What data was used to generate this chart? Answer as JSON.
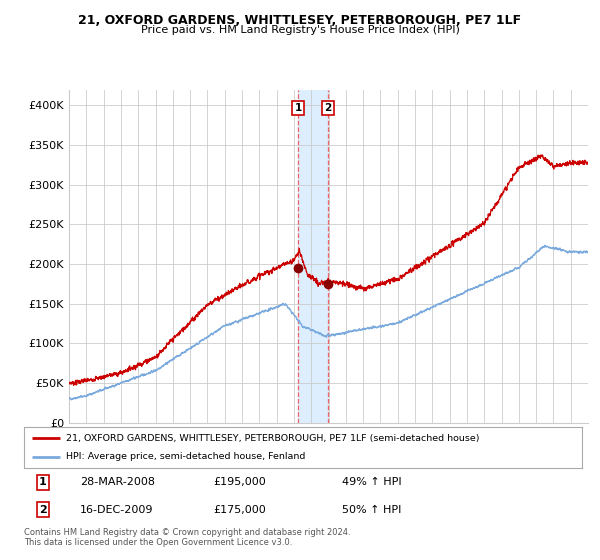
{
  "title_line1": "21, OXFORD GARDENS, WHITTLESEY, PETERBOROUGH, PE7 1LF",
  "title_line2": "Price paid vs. HM Land Registry's House Price Index (HPI)",
  "ylim": [
    0,
    420000
  ],
  "yticks": [
    0,
    50000,
    100000,
    150000,
    200000,
    250000,
    300000,
    350000,
    400000
  ],
  "ytick_labels": [
    "£0",
    "£50K",
    "£100K",
    "£150K",
    "£200K",
    "£250K",
    "£300K",
    "£350K",
    "£400K"
  ],
  "sale1_date_num": 2008.24,
  "sale1_price": 195000,
  "sale2_date_num": 2009.96,
  "sale2_price": 175000,
  "sale1_label": "1",
  "sale2_label": "2",
  "hpi_color": "#7aaadd",
  "price_color": "#cc0000",
  "sale_dot_color": "#880000",
  "shade_color": "#ddeeff",
  "vline_color": "#ee5555",
  "grid_color": "#cccccc",
  "background_color": "#ffffff",
  "legend_line1": "21, OXFORD GARDENS, WHITTLESEY, PETERBOROUGH, PE7 1LF (semi-detached house)",
  "legend_line2": "HPI: Average price, semi-detached house, Fenland",
  "table_row1": [
    "1",
    "28-MAR-2008",
    "£195,000",
    "49% ↑ HPI"
  ],
  "table_row2": [
    "2",
    "16-DEC-2009",
    "£175,000",
    "50% ↑ HPI"
  ],
  "footnote": "Contains HM Land Registry data © Crown copyright and database right 2024.\nThis data is licensed under the Open Government Licence v3.0.",
  "xstart": 1995.0,
  "xend": 2025.0
}
